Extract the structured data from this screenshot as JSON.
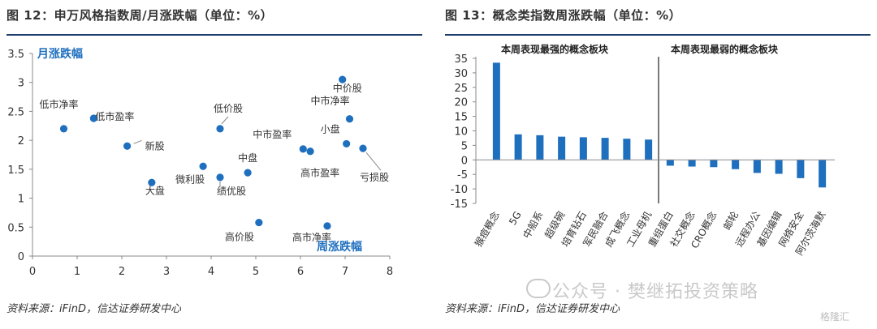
{
  "left_panel": {
    "title": "图 12：申万风格指数周/月涨跌幅（单位：%）",
    "source": "资料来源：iFinD，信达证券研发中心"
  },
  "right_panel": {
    "title": "图 13：概念类指数周涨跌幅（单位：%）",
    "source": "资料来源：iFinD，信达证券研发中心"
  },
  "watermark": {
    "text": "公众号 · 樊继拓投资策略",
    "corner_text": "格隆汇"
  },
  "chart_data": [
    {
      "type": "scatter",
      "xlabel": "周涨跌幅",
      "ylabel": "月涨跌幅",
      "xlim": [
        0,
        8
      ],
      "ylim": [
        0,
        3.5
      ],
      "x_ticks": [
        "0",
        "1",
        "2",
        "3",
        "4",
        "5",
        "6",
        "7",
        "8"
      ],
      "y_ticks": [
        "0",
        "0.5",
        "1",
        "1.5",
        "2",
        "2.5",
        "3",
        "3.5"
      ],
      "color": "#1f6fbf",
      "points": [
        {
          "label": "低市净率",
          "x": 0.7,
          "y": 2.2
        },
        {
          "label": "低市盈率",
          "x": 1.37,
          "y": 2.38
        },
        {
          "label": "新股",
          "x": 2.12,
          "y": 1.9
        },
        {
          "label": "大盘",
          "x": 2.67,
          "y": 1.27
        },
        {
          "label": "微利股",
          "x": 3.82,
          "y": 1.55
        },
        {
          "label": "绩优股",
          "x": 4.2,
          "y": 1.36
        },
        {
          "label": "低价股",
          "x": 4.2,
          "y": 2.2
        },
        {
          "label": "中盘",
          "x": 4.82,
          "y": 1.44
        },
        {
          "label": "高价股",
          "x": 5.07,
          "y": 0.58
        },
        {
          "label": "中市盈率",
          "x": 6.06,
          "y": 1.85
        },
        {
          "label": "高市盈率",
          "x": 6.22,
          "y": 1.81
        },
        {
          "label": "高市净率",
          "x": 6.6,
          "y": 0.52
        },
        {
          "label": "中价股",
          "x": 6.94,
          "y": 3.05
        },
        {
          "label": "中市净率",
          "x": 7.1,
          "y": 2.37
        },
        {
          "label": "小盘",
          "x": 7.03,
          "y": 1.94
        },
        {
          "label": "亏损股",
          "x": 7.4,
          "y": 1.86
        }
      ]
    },
    {
      "type": "bar",
      "ylim": [
        -15,
        35
      ],
      "y_ticks": [
        "35",
        "30",
        "25",
        "20",
        "15",
        "10",
        "5",
        "0",
        "-5",
        "-10",
        "-15"
      ],
      "color": "#1f6fbf",
      "group_labels": [
        "本周表现最强的概念板块",
        "本周表现最弱的概念板块"
      ],
      "categories": [
        "猴痘概念",
        "5G",
        "中船系",
        "超级碗",
        "培育钻石",
        "军民融合",
        "成飞概念",
        "工业母机",
        "重组蛋白",
        "社交概念",
        "CRO概念",
        "邮轮",
        "远程办公",
        "基因编辑",
        "网络安全",
        "阿尔茨海默"
      ],
      "values": [
        33.5,
        8.8,
        8.5,
        8.0,
        7.8,
        7.6,
        7.3,
        7.0,
        -2.0,
        -2.3,
        -2.5,
        -3.2,
        -4.5,
        -4.8,
        -6.3,
        -9.5
      ]
    }
  ]
}
